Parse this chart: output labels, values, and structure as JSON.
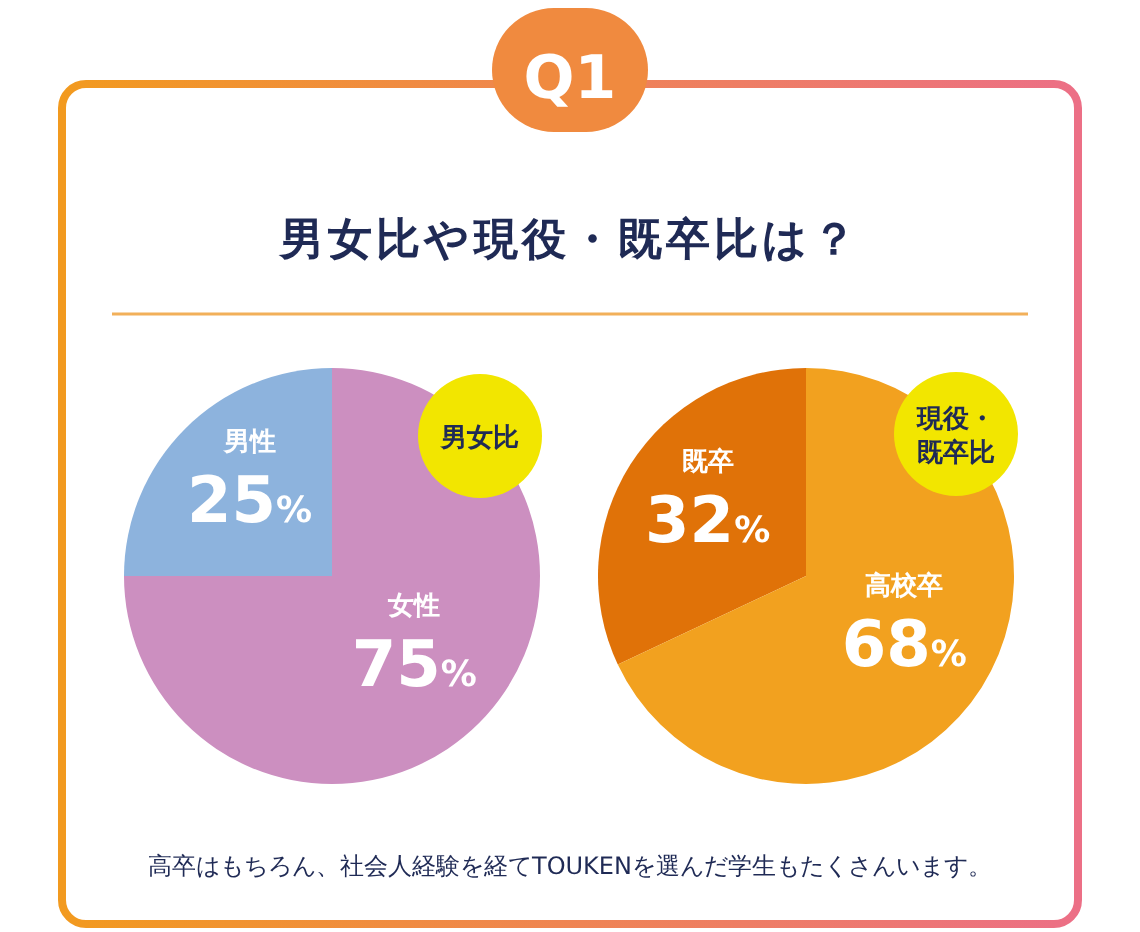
{
  "chart_data": [
    {
      "type": "pie",
      "title": "男女比",
      "categories": [
        "男性",
        "女性"
      ],
      "values": [
        25,
        75
      ],
      "colors": [
        "#8db3dd",
        "#cc8fc0"
      ],
      "value_labels": [
        "25%",
        "75%"
      ],
      "annotations": [
        "Q1",
        "男女比や現役・既卒比は？"
      ]
    },
    {
      "type": "pie",
      "title": "現役・既卒比",
      "categories": [
        "既卒",
        "高校卒"
      ],
      "values": [
        32,
        68
      ],
      "colors": [
        "#e07208",
        "#f2a11f"
      ],
      "value_labels": [
        "32%",
        "68%"
      ],
      "annotations": [
        "高卒はもちろん、社会人経験を経てTOUKENを選んだ学生もたくさんいます。"
      ]
    }
  ]
}
